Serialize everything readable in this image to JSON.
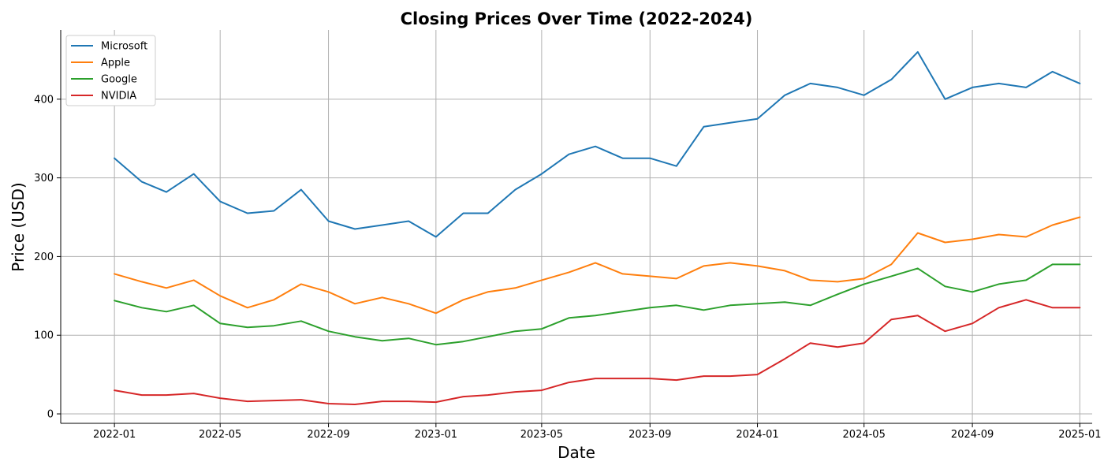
{
  "chart_data": {
    "type": "line",
    "title": "Closing Prices Over Time (2022-2024)",
    "xlabel": "Date",
    "ylabel": "Price (USD)",
    "xlim": [
      "2021-11-01",
      "2025-01-15"
    ],
    "ylim": [
      -12,
      488
    ],
    "x_ticks": [
      "2022-01",
      "2022-05",
      "2022-09",
      "2023-01",
      "2023-05",
      "2023-09",
      "2024-01",
      "2024-05",
      "2024-09",
      "2025-01"
    ],
    "y_ticks": [
      0,
      100,
      200,
      300,
      400
    ],
    "grid": true,
    "legend_position": "top-left",
    "x": [
      "2022-01",
      "2022-02",
      "2022-03",
      "2022-04",
      "2022-05",
      "2022-06",
      "2022-07",
      "2022-08",
      "2022-09",
      "2022-10",
      "2022-11",
      "2022-12",
      "2023-01",
      "2023-02",
      "2023-03",
      "2023-04",
      "2023-05",
      "2023-06",
      "2023-07",
      "2023-08",
      "2023-09",
      "2023-10",
      "2023-11",
      "2023-12",
      "2024-01",
      "2024-02",
      "2024-03",
      "2024-04",
      "2024-05",
      "2024-06",
      "2024-07",
      "2024-08",
      "2024-09",
      "2024-10",
      "2024-11",
      "2024-12",
      "2025-01"
    ],
    "series": [
      {
        "name": "Microsoft",
        "color": "#1f77b4",
        "values": [
          325,
          295,
          282,
          305,
          270,
          255,
          258,
          285,
          245,
          235,
          240,
          245,
          225,
          255,
          255,
          285,
          305,
          330,
          340,
          325,
          325,
          315,
          365,
          370,
          375,
          405,
          420,
          415,
          405,
          425,
          460,
          400,
          415,
          420,
          415,
          435,
          420
        ]
      },
      {
        "name": "Apple",
        "color": "#ff7f0e",
        "values": [
          178,
          168,
          160,
          170,
          150,
          135,
          145,
          165,
          155,
          140,
          148,
          140,
          128,
          145,
          155,
          160,
          170,
          180,
          192,
          178,
          175,
          172,
          188,
          192,
          188,
          182,
          170,
          168,
          172,
          190,
          230,
          218,
          222,
          228,
          225,
          240,
          250
        ]
      },
      {
        "name": "Google",
        "color": "#2ca02c",
        "values": [
          144,
          135,
          130,
          138,
          115,
          110,
          112,
          118,
          105,
          98,
          93,
          96,
          88,
          92,
          98,
          105,
          108,
          122,
          125,
          130,
          135,
          138,
          132,
          138,
          140,
          142,
          138,
          152,
          165,
          175,
          185,
          162,
          155,
          165,
          170,
          190,
          190
        ]
      },
      {
        "name": "NVIDIA",
        "color": "#d62728",
        "values": [
          30,
          24,
          24,
          26,
          20,
          16,
          17,
          18,
          13,
          12,
          16,
          16,
          15,
          22,
          24,
          28,
          30,
          40,
          45,
          45,
          45,
          43,
          48,
          48,
          50,
          70,
          90,
          85,
          90,
          120,
          125,
          105,
          115,
          135,
          145,
          135,
          135
        ]
      }
    ]
  }
}
